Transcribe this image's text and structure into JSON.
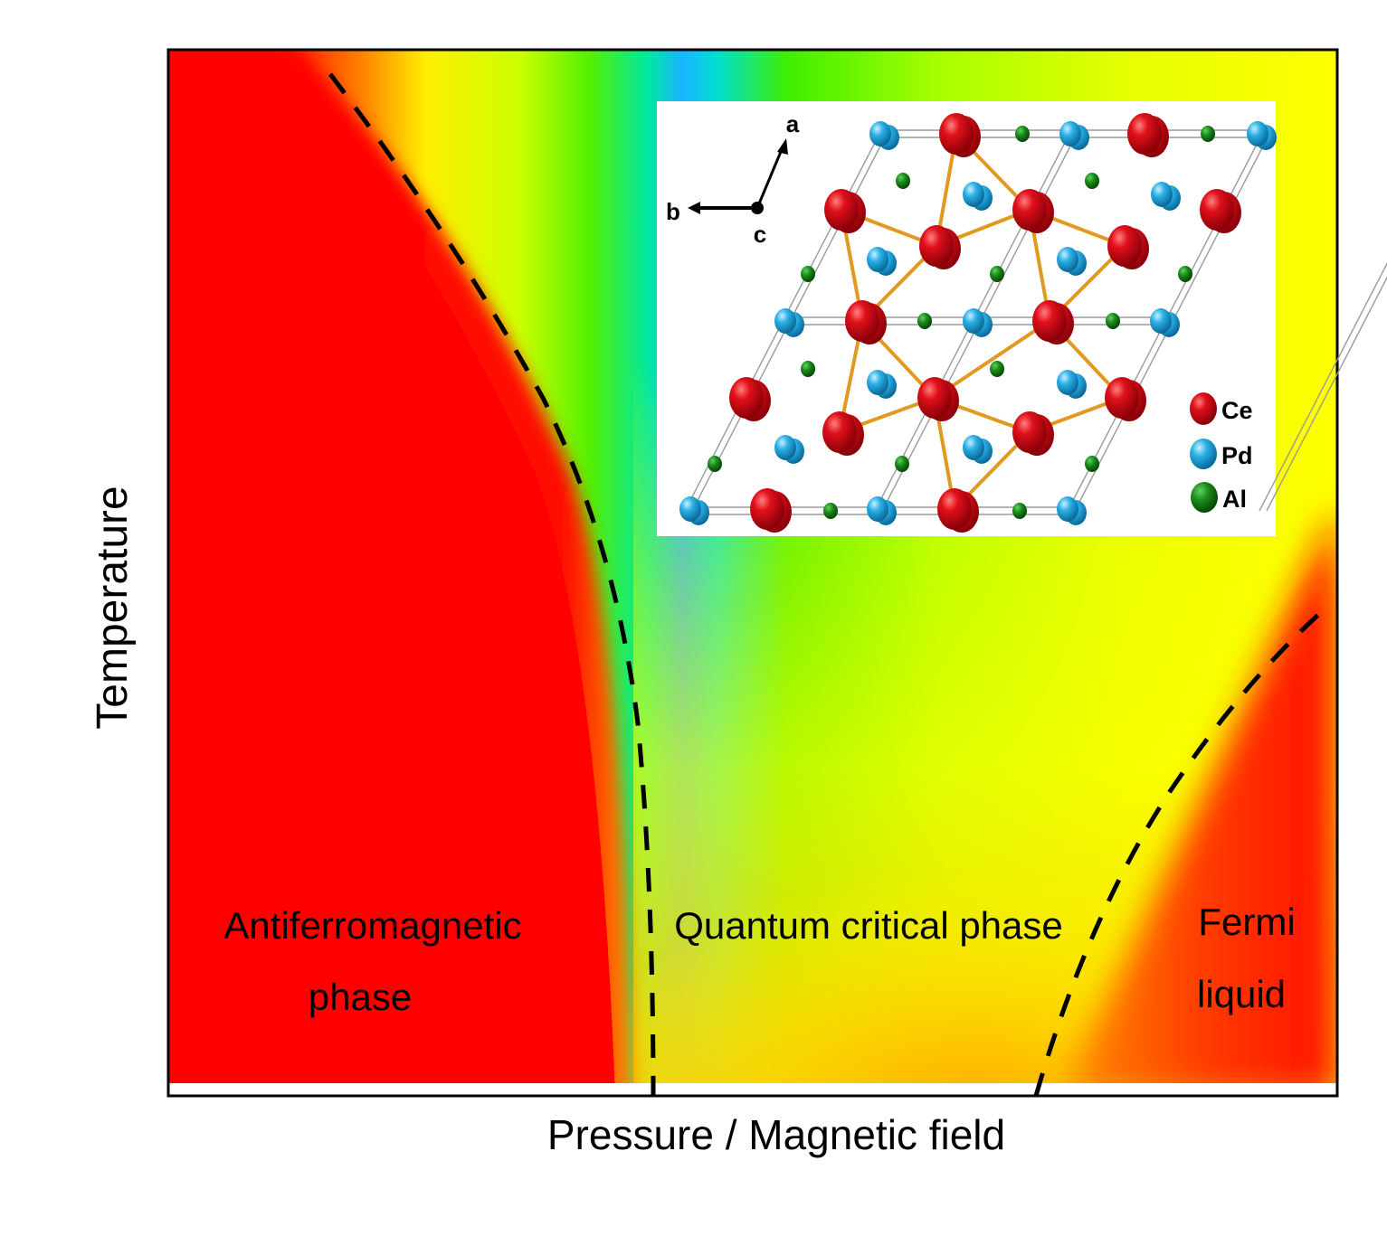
{
  "axes": {
    "xlabel": "Pressure / Magnetic field",
    "ylabel": "Temperature"
  },
  "regions": {
    "antiferromagnetic": [
      "Antiferromagnetic",
      "phase"
    ],
    "quantum_critical": "Quantum critical phase",
    "fermi_liquid": [
      "Fermi",
      "liquid"
    ]
  },
  "inset": {
    "axes": {
      "a": "a",
      "b": "b",
      "c": "c"
    },
    "legend": [
      {
        "label": "Ce",
        "color": "#e0101a"
      },
      {
        "label": "Pd",
        "color": "#2ab0e6"
      },
      {
        "label": "Al",
        "color": "#1a8a1a"
      }
    ]
  },
  "colors": {
    "red": "#ff0000",
    "orange": "#ff9900",
    "yellow": "#ffff00",
    "green": "#33ee00",
    "cyan": "#00eaff",
    "blue": "#1aa0ff",
    "bond": "#e09a20"
  }
}
